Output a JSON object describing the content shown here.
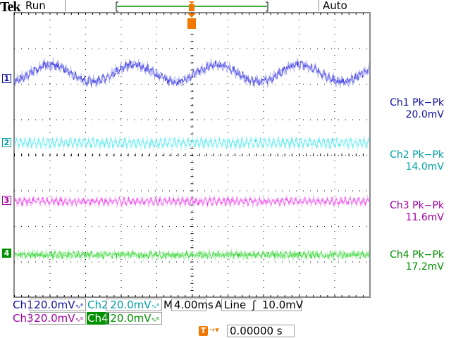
{
  "header": {
    "brand": "Tek",
    "status": "Run",
    "trigger_mode": "Auto"
  },
  "colors": {
    "ch1": "#1010a0",
    "ch2": "#00a0a0",
    "ch3": "#a000a0",
    "ch4": "#009000",
    "trigger": "#f07800",
    "ch1_trace": "#3030e0",
    "ch2_trace": "#20e8f0",
    "ch3_trace": "#f020f0",
    "ch4_trace": "#20d020"
  },
  "channels": [
    {
      "id": "1",
      "marker": "1",
      "scale_label": "Ch1",
      "scale": "20.0mV",
      "bw_icon": "bandwidth-limit-icon",
      "meas_label": "Ch1 Pk−Pk",
      "meas_value": "20.0mV"
    },
    {
      "id": "2",
      "marker": "2",
      "scale_label": "Ch2",
      "scale": "20.0mV",
      "bw_icon": "bandwidth-limit-icon",
      "meas_label": "Ch2 Pk−Pk",
      "meas_value": "14.0mV"
    },
    {
      "id": "3",
      "marker": "3",
      "scale_label": "Ch3",
      "scale": "20.0mV",
      "bw_icon": "bandwidth-limit-icon",
      "meas_label": "Ch3 Pk−Pk",
      "meas_value": "11.6mV"
    },
    {
      "id": "4",
      "marker": "4",
      "scale_label": "Ch4",
      "scale": "20.0mV",
      "bw_icon": "bandwidth-limit-icon",
      "meas_label": "Ch4 Pk−Pk",
      "meas_value": "17.2mV"
    }
  ],
  "timebase": {
    "label": "M",
    "value": "4.00ms"
  },
  "trigger": {
    "source_label": "A",
    "source": "Line",
    "slope_icon": "rising-edge-icon",
    "level": "10.0mV",
    "marker": "T",
    "position": "0.00000 s"
  }
}
